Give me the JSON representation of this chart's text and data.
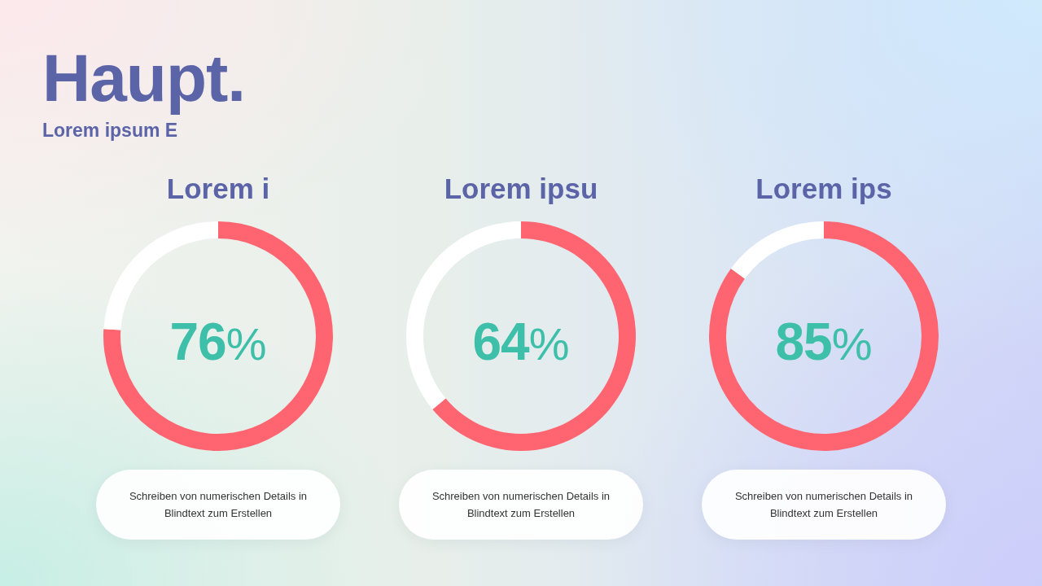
{
  "chart_data": [
    {
      "type": "other",
      "title": "Haupt.",
      "subtitle": "Lorem ipsum E"
    },
    {
      "type": "donut",
      "title": "Lorem i",
      "categories": [
        null,
        null
      ],
      "values": [
        76,
        24
      ],
      "colors": [
        "#ff6471",
        "#ffffff"
      ],
      "value_labels": [
        "76%",
        null
      ],
      "annotations": [
        "Schreiben von numerischen Details in Blindtext zum Erstellen"
      ]
    },
    {
      "type": "donut",
      "title": "Lorem ipsu",
      "categories": [
        null,
        null
      ],
      "values": [
        64,
        36
      ],
      "colors": [
        "#ff6471",
        "#ffffff"
      ],
      "value_labels": [
        "64%",
        null
      ],
      "annotations": [
        "Schreiben von numerischen Details in Blindtext zum Erstellen"
      ]
    },
    {
      "type": "donut",
      "title": "Lorem ips",
      "categories": [
        null,
        null
      ],
      "values": [
        85,
        15
      ],
      "colors": [
        "#ff6471",
        "#ffffff"
      ],
      "value_labels": [
        "85%",
        null
      ],
      "annotations": [
        "Schreiben von numerischen Details in Blindtext zum Erstellen"
      ]
    }
  ]
}
